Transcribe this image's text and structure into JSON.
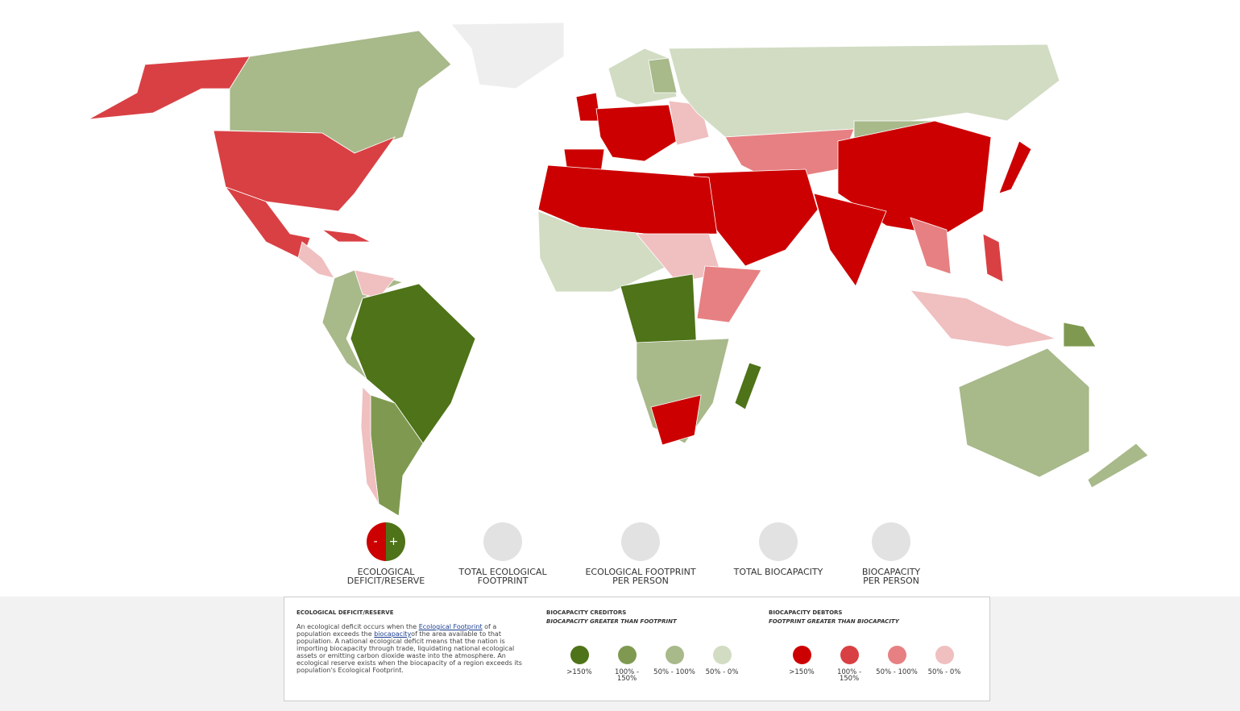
{
  "tabs": [
    {
      "label": "ECOLOGICAL DEFICIT/RESERVE",
      "icon_minus": "-",
      "icon_plus": "+"
    },
    {
      "label": "TOTAL ECOLOGICAL FOOTPRINT"
    },
    {
      "label": "ECOLOGICAL FOOTPRINT PER PERSON"
    },
    {
      "label": "TOTAL BIOCAPACITY"
    },
    {
      "label": "BIOCAPACITY PER PERSON"
    }
  ],
  "legend": {
    "title": "ECOLOGICAL DEFICIT/RESERVE",
    "description": [
      "An ecological deficit occurs when the ",
      "Ecological Footprint",
      " of a population exceeds the ",
      "biocapacity",
      "of the area available to that population. A national ecological deficit means that the nation is importing biocapacity through trade, liquidating national ecological assets or emitting carbon dioxide waste into the atmosphere. An ecological reserve exists when the biocapacity of a region exceeds its population's Ecological Footprint."
    ],
    "creditors": {
      "title": "BIOCAPACITY CREDITORS",
      "subtitle": "BIOCAPACITY GREATER THAN FOOTPRINT",
      "items": [
        {
          "label": ">150%",
          "color": "#4e7318"
        },
        {
          "label": "100% - 150%",
          "color": "#7f9a50"
        },
        {
          "label": "50% - 100%",
          "color": "#a8b98a"
        },
        {
          "label": "50% - 0%",
          "color": "#d1dcc3"
        }
      ]
    },
    "debtors": {
      "title": "BIOCAPACITY DEBTORS",
      "subtitle": "FOOTPRINT GREATER THAN BIOCAPACITY",
      "items": [
        {
          "label": ">150%",
          "color": "#cc0000"
        },
        {
          "label": "100% - 150%",
          "color": "#d94043"
        },
        {
          "label": "50% - 100%",
          "color": "#e78082"
        },
        {
          "label": "50% - 0%",
          "color": "#f0bfbf"
        }
      ]
    }
  }
}
